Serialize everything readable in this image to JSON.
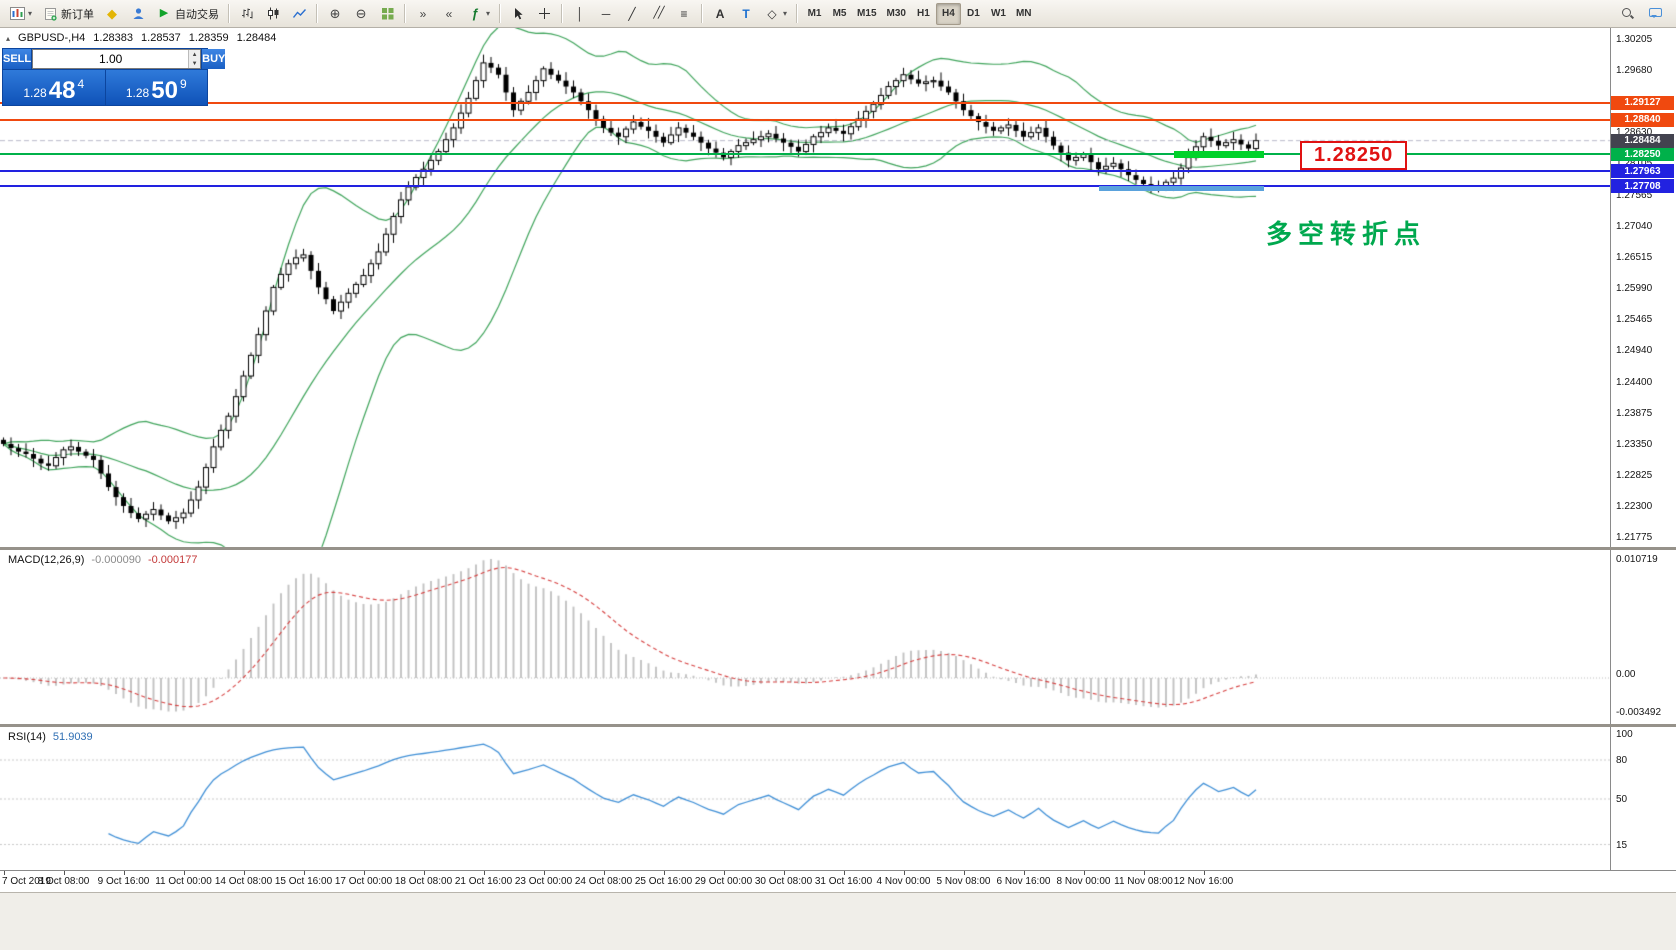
{
  "toolbar": {
    "items": [
      {
        "name": "new-chart-button",
        "icon": "chart",
        "dropdown": true
      },
      {
        "name": "new-order-button",
        "icon": "doc",
        "label": "新订单"
      },
      {
        "name": "mql5-community-button",
        "icon": "diamond"
      },
      {
        "name": "virtual-hosting-button",
        "icon": "person"
      },
      {
        "name": "autotrading-button",
        "icon": "play",
        "label": "自动交易"
      },
      {
        "sep": true
      },
      {
        "name": "bar-chart-button",
        "icon": "bars"
      },
      {
        "name": "candlestick-chart-button",
        "icon": "candles"
      },
      {
        "name": "line-chart-button",
        "icon": "linechart"
      },
      {
        "sep": true
      },
      {
        "name": "zoom-in-button",
        "icon": "zoomin"
      },
      {
        "name": "zoom-out-button",
        "icon": "zoomout"
      },
      {
        "name": "tile-windows-button",
        "icon": "grid"
      },
      {
        "sep": true
      },
      {
        "name": "auto-scroll-button",
        "icon": "autoscroll"
      },
      {
        "name": "chart-shift-button",
        "icon": "shift"
      },
      {
        "name": "indicators-button",
        "icon": "fx",
        "dropdown": true
      },
      {
        "sep": true
      },
      {
        "name": "cursor-button",
        "icon": "cursor"
      },
      {
        "name": "crosshair-button",
        "icon": "cross"
      },
      {
        "sep": true
      },
      {
        "name": "vertical-line-button",
        "icon": "vline"
      },
      {
        "name": "horizontal-line-button",
        "icon": "hline"
      },
      {
        "name": "trendline-button",
        "icon": "trend"
      },
      {
        "name": "equidistant-channel-button",
        "icon": "channel"
      },
      {
        "name": "fibonacci-button",
        "icon": "fibo"
      },
      {
        "sep": true
      },
      {
        "name": "text-button",
        "icon": "textA"
      },
      {
        "name": "text-label-button",
        "icon": "textT"
      },
      {
        "name": "arrows-button",
        "icon": "shapes",
        "dropdown": true
      },
      {
        "sep": true
      }
    ],
    "timeframes": [
      "M1",
      "M5",
      "M15",
      "M30",
      "H1",
      "H4",
      "D1",
      "W1",
      "MN"
    ],
    "active_timeframe": "H4",
    "right_items": [
      {
        "name": "search-button",
        "icon": "search"
      },
      {
        "name": "chat-button",
        "icon": "chat"
      }
    ]
  },
  "chart_header": {
    "symbol": "GBPUSD-,H4",
    "open": "1.28383",
    "high": "1.28537",
    "low": "1.28359",
    "close": "1.28484"
  },
  "quote_panel": {
    "sell_label": "SELL",
    "buy_label": "BUY",
    "volume": "1.00",
    "sell_price": {
      "main": "1.28",
      "big": "48",
      "sup": "4"
    },
    "buy_price": {
      "main": "1.28",
      "big": "50",
      "sup": "9"
    }
  },
  "annotations": {
    "turning_point": "多空转折点",
    "price_callout": "1.28250"
  },
  "chart_data": {
    "type": "candlestick",
    "symbol": "GBPUSD",
    "timeframe": "H4",
    "first_open": 1.2342,
    "closes": [
      1.2335,
      1.2328,
      1.2322,
      1.2318,
      1.231,
      1.2302,
      1.2298,
      1.2312,
      1.2325,
      1.233,
      1.2322,
      1.2315,
      1.2308,
      1.2285,
      1.2262,
      1.2245,
      1.223,
      1.2218,
      1.2208,
      1.2216,
      1.2224,
      1.2214,
      1.2204,
      1.221,
      1.2218,
      1.224,
      1.2262,
      1.2295,
      1.233,
      1.2358,
      1.2382,
      1.2415,
      1.245,
      1.2485,
      1.252,
      1.256,
      1.26,
      1.2622,
      1.264,
      1.265,
      1.2655,
      1.2628,
      1.26,
      1.258,
      1.256,
      1.2575,
      1.259,
      1.2605,
      1.262,
      1.264,
      1.266,
      1.269,
      1.272,
      1.2748,
      1.277,
      1.2786,
      1.28,
      1.2815,
      1.283,
      1.285,
      1.287,
      1.2895,
      1.292,
      1.295,
      1.298,
      1.2972,
      1.296,
      1.293,
      1.29,
      1.2915,
      1.293,
      1.295,
      1.297,
      1.296,
      1.295,
      1.294,
      1.293,
      1.2915,
      1.29,
      1.2885,
      1.287,
      1.2862,
      1.2855,
      1.2868,
      1.288,
      1.2872,
      1.2865,
      1.2855,
      1.2845,
      1.2858,
      1.287,
      1.2862,
      1.2855,
      1.2845,
      1.2835,
      1.2828,
      1.282,
      1.283,
      1.284,
      1.2845,
      1.285,
      1.2855,
      1.286,
      1.2852,
      1.2845,
      1.2838,
      1.283,
      1.2842,
      1.2855,
      1.2862,
      1.287,
      1.2865,
      1.286,
      1.2872,
      1.2885,
      1.2898,
      1.291,
      1.2925,
      1.294,
      1.295,
      1.296,
      1.2952,
      1.2945,
      1.2948,
      1.295,
      1.294,
      1.293,
      1.2915,
      1.29,
      1.289,
      1.288,
      1.2872,
      1.2865,
      1.287,
      1.2875,
      1.2865,
      1.2855,
      1.2862,
      1.287,
      1.2855,
      1.284,
      1.2828,
      1.2815,
      1.282,
      1.2825,
      1.2812,
      1.28,
      1.2805,
      1.281,
      1.28,
      1.279,
      1.2782,
      1.2775,
      1.2772,
      1.277,
      1.2778,
      1.2785,
      1.2802,
      1.282,
      1.2838,
      1.2855,
      1.2848,
      1.284,
      1.2845,
      1.285,
      1.2842,
      1.2835,
      1.28484
    ],
    "style": {
      "up_color": "#ffffff",
      "down_color": "#000000",
      "wick_color": "#000000"
    },
    "bollinger": {
      "period": 20,
      "deviation": 2,
      "color": "#3fa45b"
    },
    "price_axis_labels": [
      "1.30205",
      "1.29680",
      "1.29155",
      "1.28630",
      "1.28105",
      "1.27565",
      "1.27040",
      "1.26515",
      "1.25990",
      "1.25465",
      "1.24940",
      "1.24400",
      "1.23875",
      "1.23350",
      "1.22825",
      "1.22300",
      "1.21775"
    ],
    "time_axis_labels": [
      "7 Oct 2019",
      "8 Oct 08:00",
      "9 Oct 16:00",
      "11 Oct 00:00",
      "14 Oct 08:00",
      "15 Oct 16:00",
      "17 Oct 00:00",
      "18 Oct 08:00",
      "21 Oct 16:00",
      "23 Oct 00:00",
      "24 Oct 08:00",
      "25 Oct 16:00",
      "29 Oct 00:00",
      "30 Oct 08:00",
      "31 Oct 16:00",
      "4 Nov 00:00",
      "5 Nov 08:00",
      "6 Nov 16:00",
      "8 Nov 00:00",
      "11 Nov 08:00",
      "12 Nov 16:00"
    ],
    "hlines": [
      {
        "price": 1.29127,
        "label": "1.29127",
        "color": "#f0490f",
        "width": 2
      },
      {
        "price": 1.2884,
        "label": "1.28840",
        "color": "#f0490f",
        "width": 2
      },
      {
        "price": 1.2825,
        "label": "1.28250",
        "color": "#00b14a",
        "width": 2
      },
      {
        "price": 1.27963,
        "label": "1.27963",
        "color": "#2222e0",
        "width": 2
      },
      {
        "price": 1.27708,
        "label": "1.27708",
        "color": "#2222e0",
        "width": 2
      }
    ],
    "bid_tag": {
      "price": 1.28484,
      "label": "1.28484",
      "color": "#43434f"
    },
    "thick_segments": [
      {
        "name": "support-highlight-green",
        "price": 1.2825,
        "from_index": 156,
        "to_index": 168,
        "color": "#00d22a",
        "height": 7
      },
      {
        "name": "support-highlight-blue",
        "price": 1.2768,
        "from_index": 146,
        "to_index": 168,
        "color": "#5aa2dc",
        "height": 5
      }
    ],
    "indicators": {
      "macd": {
        "title": "MACD(12,26,9)",
        "value1": "-0.000090",
        "value2": "-0.000177",
        "axis_labels": [
          "0.010719",
          "0.00",
          "-0.003492"
        ],
        "hist_color": "#c4c4c4",
        "signal_color": "#d64040"
      },
      "rsi": {
        "title": "RSI(14)",
        "value": "51.9039",
        "axis_labels": [
          "100",
          "80",
          "50",
          "15"
        ],
        "levels": [
          80,
          50,
          15
        ],
        "color": "#3f8fd6"
      }
    }
  }
}
